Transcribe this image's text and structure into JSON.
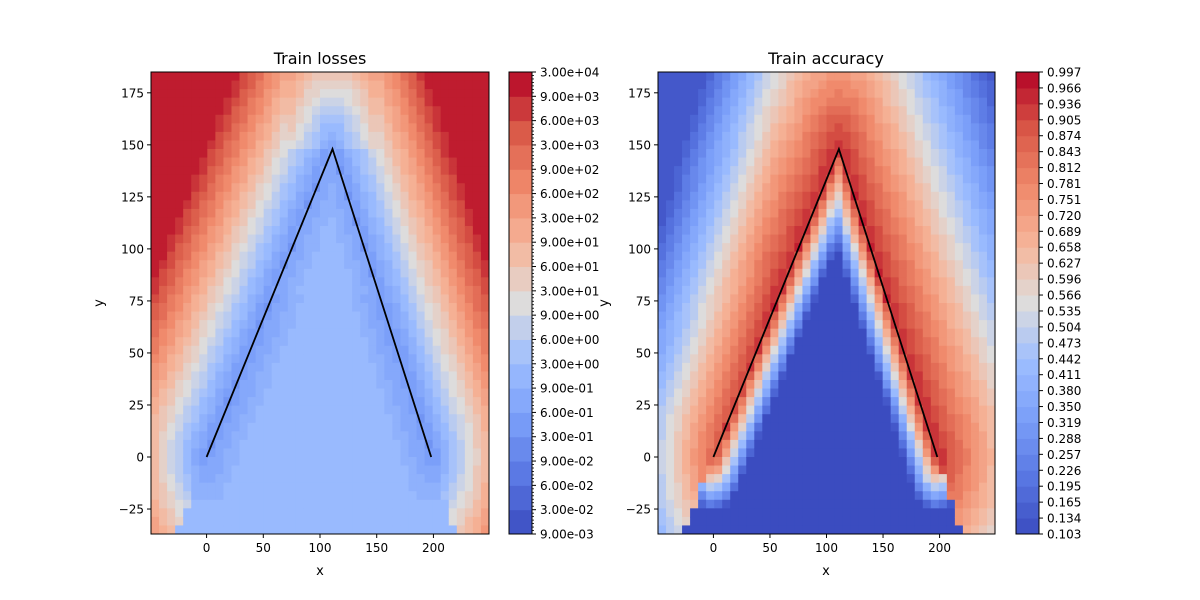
{
  "chart_data": [
    {
      "type": "heatmap",
      "title": "Train losses",
      "xlabel": "x",
      "ylabel": "y",
      "xlim": [
        -49,
        249
      ],
      "ylim": [
        -37,
        185
      ],
      "xticks": [
        "0",
        "50",
        "100",
        "150",
        "200"
      ],
      "yticks": [
        "−25",
        "0",
        "25",
        "50",
        "75",
        "100",
        "125",
        "150",
        "175"
      ],
      "colormap": "coolwarm",
      "colorbar_scale": "log",
      "colorbar_ticks": [
        "9.00e-03",
        "3.00e-02",
        "6.00e-02",
        "9.00e-02",
        "3.00e-01",
        "6.00e-01",
        "9.00e-01",
        "3.00e+00",
        "6.00e+00",
        "9.00e+00",
        "3.00e+01",
        "6.00e+01",
        "9.00e+01",
        "3.00e+02",
        "6.00e+02",
        "9.00e+02",
        "3.00e+03",
        "6.00e+03",
        "9.00e+03",
        "3.00e+04"
      ],
      "path": {
        "x": [
          0,
          111,
          198
        ],
        "y": [
          0,
          148,
          0
        ]
      }
    },
    {
      "type": "heatmap",
      "title": "Train accuracy",
      "xlabel": "x",
      "ylabel": "y",
      "xlim": [
        -49,
        249
      ],
      "ylim": [
        -37,
        185
      ],
      "xticks": [
        "0",
        "50",
        "100",
        "150",
        "200"
      ],
      "yticks": [
        "−25",
        "0",
        "25",
        "50",
        "75",
        "100",
        "125",
        "150",
        "175"
      ],
      "colormap": "coolwarm",
      "colorbar_scale": "linear",
      "colorbar_ticks": [
        "0.103",
        "0.134",
        "0.165",
        "0.195",
        "0.226",
        "0.257",
        "0.288",
        "0.319",
        "0.350",
        "0.380",
        "0.411",
        "0.442",
        "0.473",
        "0.504",
        "0.535",
        "0.566",
        "0.596",
        "0.627",
        "0.658",
        "0.689",
        "0.720",
        "0.751",
        "0.781",
        "0.812",
        "0.843",
        "0.874",
        "0.905",
        "0.936",
        "0.966",
        "0.997"
      ],
      "path": {
        "x": [
          0,
          111,
          198
        ],
        "y": [
          0,
          148,
          0
        ]
      }
    }
  ]
}
